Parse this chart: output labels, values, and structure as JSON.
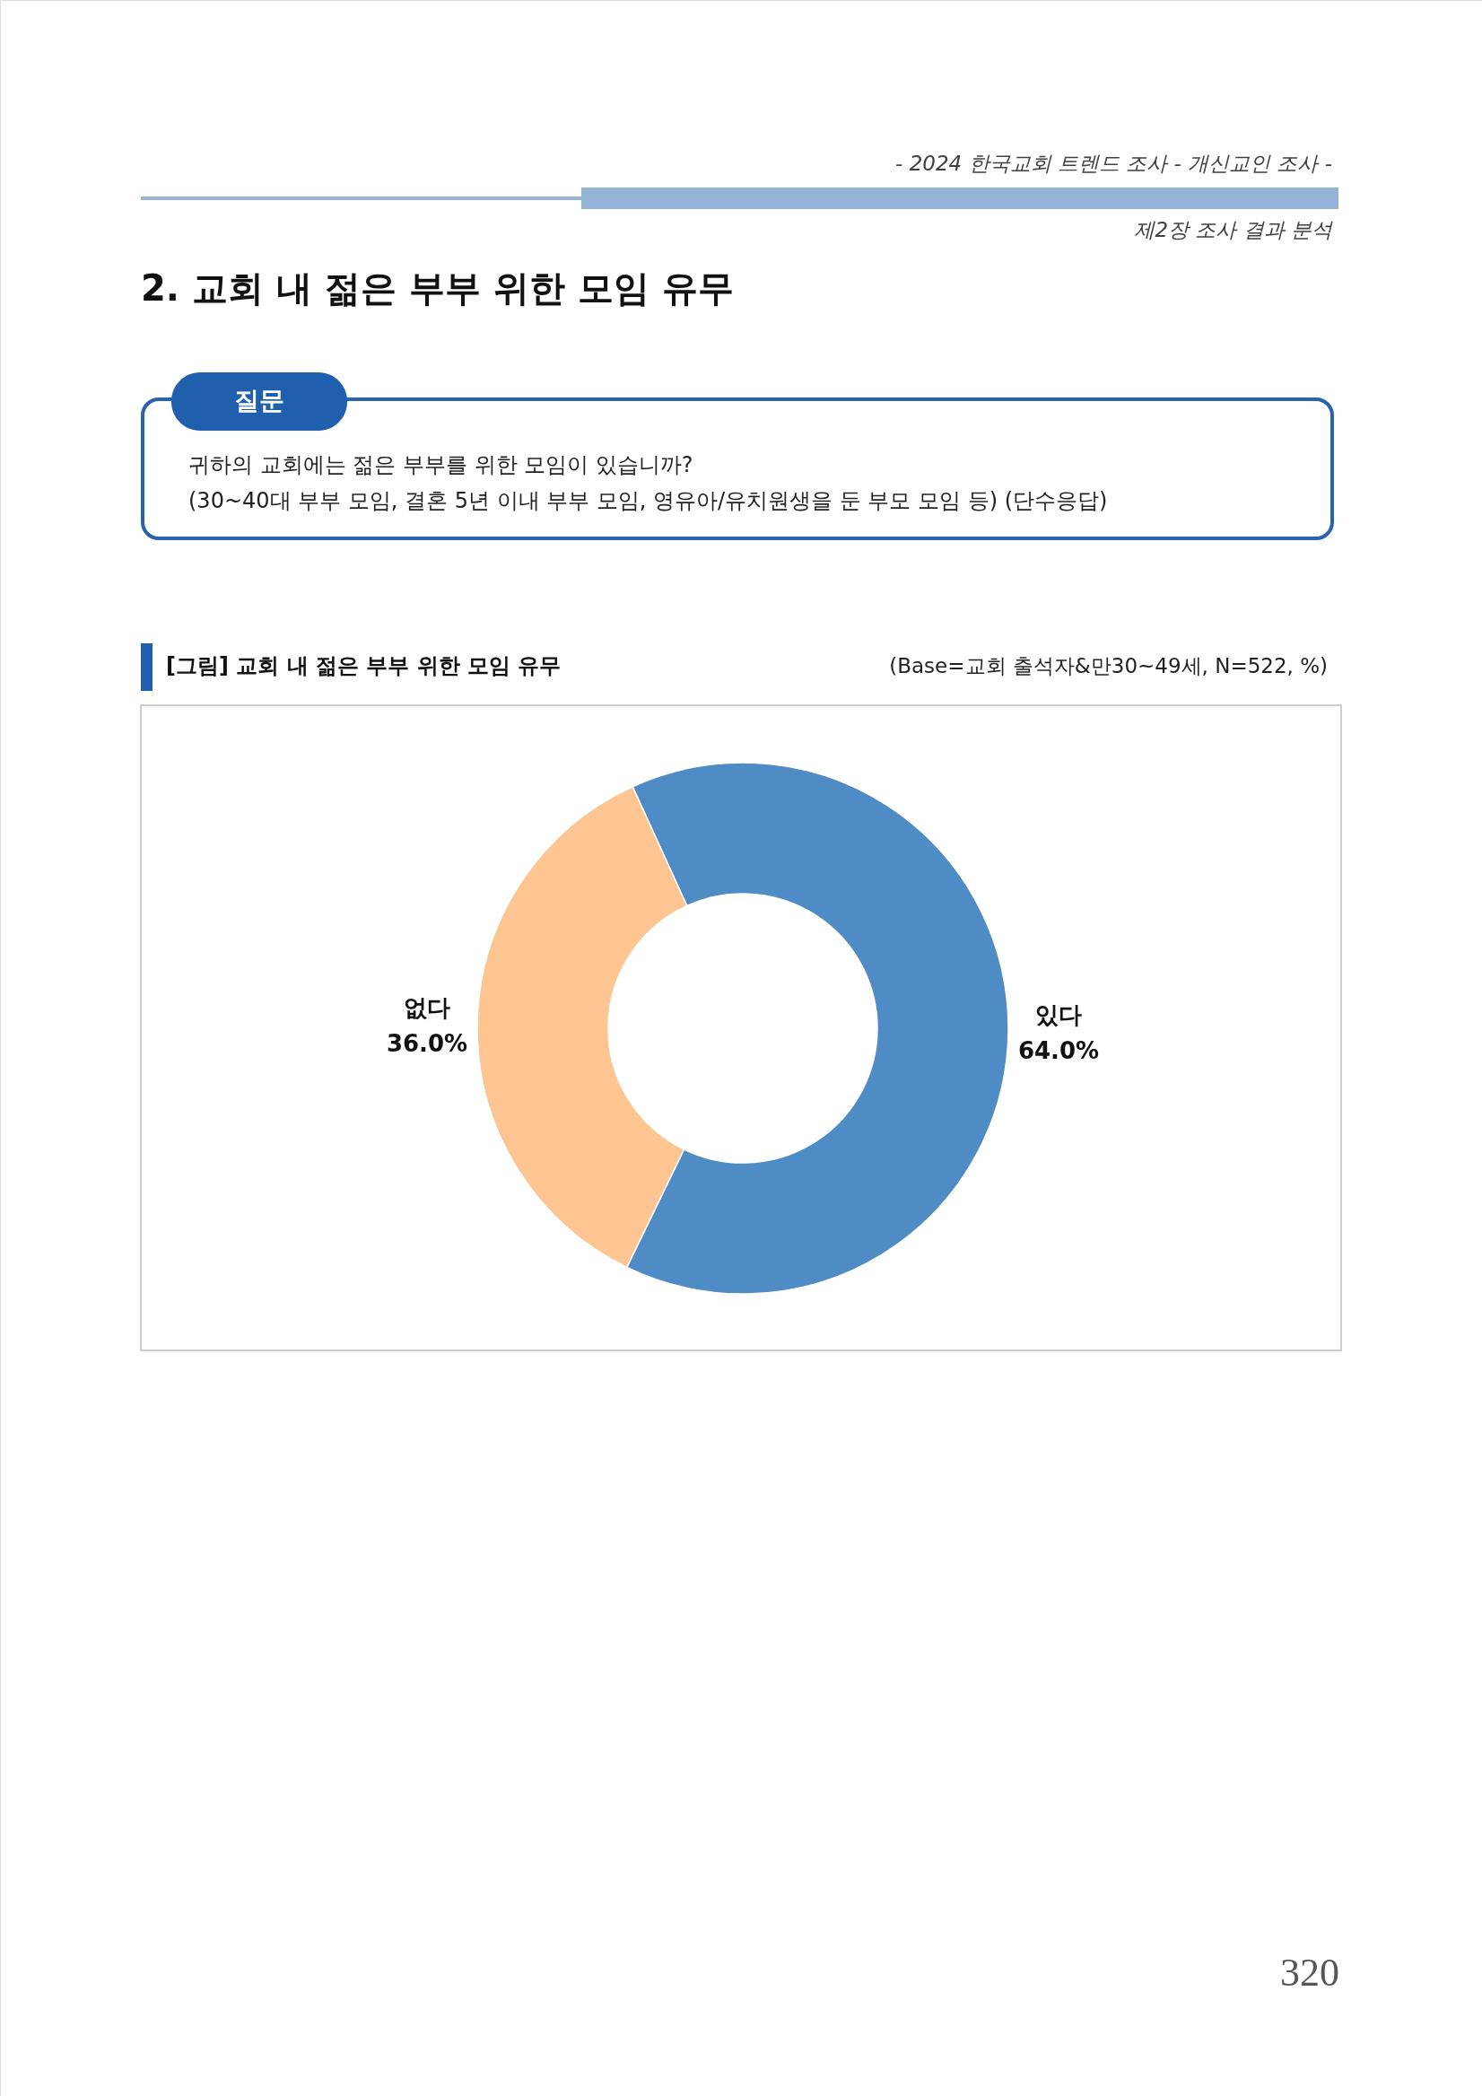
{
  "chart_data": {
    "type": "donut",
    "title": "[그림] 교회 내 젊은 부부 위한 모임 유무",
    "categories": [
      "있다",
      "없다"
    ],
    "values": [
      64.0,
      36.0
    ],
    "colors": [
      "#4f8bc4",
      "#fdc591"
    ],
    "value_labels": [
      "64.0%",
      "36.0%"
    ],
    "annotations": [
      "- 2024 한국교회 트렌드 조사 - 개신교인 조사 -",
      "제2장 조사 결과 분석",
      "2. 교회 내 젊은 부부 위한 모임 유무",
      "질문",
      "귀하의 교회에는 젊은 부부를 위한 모임이 있습니까?",
      "(30~40대 부부 모임, 결혼 5년 이내 부부 모임, 영유아/유치원생을 둔 부모 모임 등) (단수응답)",
      "(Base=교회 출석자&만30~49세, N=522, %)",
      "320"
    ]
  }
}
